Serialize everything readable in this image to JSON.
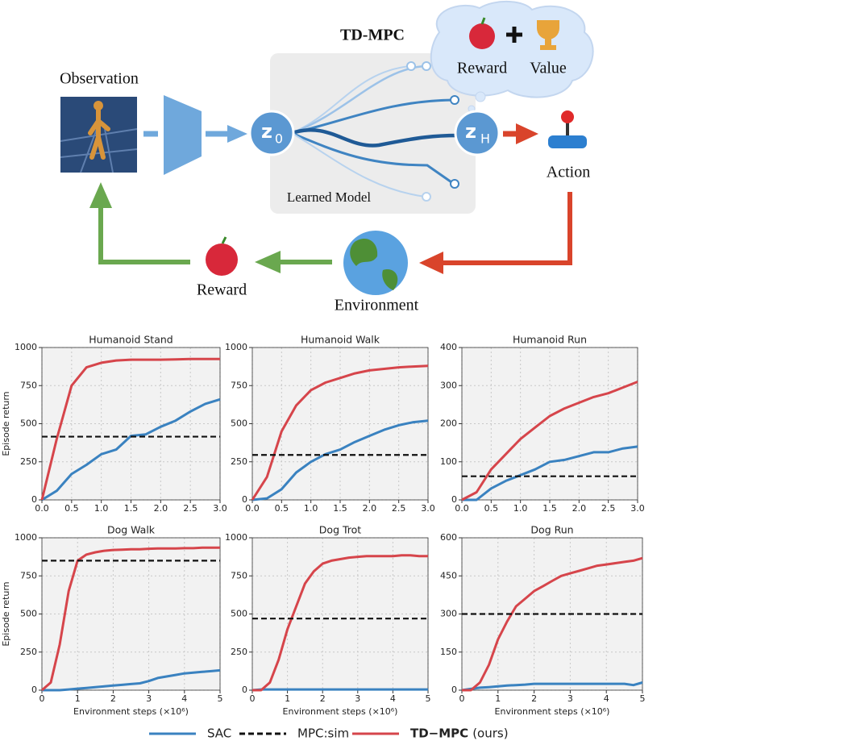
{
  "diagram": {
    "title": "TD-MPC",
    "observation": "Observation",
    "cloud_reward": "Reward",
    "cloud_value": "Value",
    "model": "Learned Model",
    "action": "Action",
    "reward": "Reward",
    "environment": "Environment",
    "start_latent": {
      "base": "z",
      "sub": "0"
    },
    "end_latent": {
      "base": "z",
      "sub": "H"
    }
  },
  "legend": [
    {
      "name": "SAC",
      "color": "#3a82c0",
      "style": "solid"
    },
    {
      "name": "MPC:sim",
      "color": "#111111",
      "style": "dashed"
    },
    {
      "name": "TD−MPC",
      "note": "(ours)",
      "color": "#d6454b",
      "style": "solid"
    }
  ],
  "chart_data": [
    {
      "type": "line",
      "title": "Humanoid Stand",
      "ylabel": "Episode return",
      "grid": true,
      "x": [
        0,
        0.25,
        0.5,
        0.75,
        1,
        1.25,
        1.5,
        1.75,
        2,
        2.25,
        2.5,
        2.75,
        3
      ],
      "series": [
        {
          "values": [
            0,
            60,
            170,
            230,
            300,
            330,
            420,
            430,
            480,
            520,
            580,
            630,
            660
          ]
        },
        {
          "values": [
            0,
            400,
            750,
            870,
            900,
            915,
            920,
            920,
            920,
            922,
            925,
            925,
            925
          ]
        }
      ],
      "reference": 415,
      "xlim": [
        0,
        3
      ],
      "xticks": [
        {
          "value": 0,
          "label": "0.0"
        },
        0.5,
        {
          "value": 1,
          "label": "1.0"
        },
        1.5,
        {
          "value": 2,
          "label": "2.0"
        },
        2.5,
        {
          "value": 3,
          "label": "3.0"
        }
      ],
      "ylim": [
        0,
        1000
      ],
      "yticks": [
        0,
        250,
        500,
        750,
        1000
      ]
    },
    {
      "type": "line",
      "title": "Humanoid Walk",
      "grid": true,
      "x": [
        0,
        0.25,
        0.5,
        0.75,
        1,
        1.25,
        1.5,
        1.75,
        2,
        2.25,
        2.5,
        2.75,
        3
      ],
      "series": [
        {
          "values": [
            0,
            10,
            70,
            180,
            250,
            300,
            330,
            380,
            420,
            460,
            490,
            510,
            520
          ]
        },
        {
          "values": [
            0,
            150,
            450,
            620,
            720,
            770,
            800,
            830,
            850,
            860,
            870,
            875,
            880
          ]
        }
      ],
      "reference": 295,
      "xlim": [
        0,
        3
      ],
      "xticks": [
        {
          "value": 0,
          "label": "0.0"
        },
        0.5,
        {
          "value": 1,
          "label": "1.0"
        },
        1.5,
        {
          "value": 2,
          "label": "2.0"
        },
        2.5,
        {
          "value": 3,
          "label": "3.0"
        }
      ],
      "ylim": [
        0,
        1000
      ],
      "yticks": [
        0,
        250,
        500,
        750,
        1000
      ]
    },
    {
      "type": "line",
      "title": "Humanoid Run",
      "grid": true,
      "x": [
        0,
        0.25,
        0.5,
        0.75,
        1,
        1.25,
        1.5,
        1.75,
        2,
        2.25,
        2.5,
        2.75,
        3
      ],
      "series": [
        {
          "values": [
            0,
            0,
            30,
            50,
            65,
            80,
            100,
            105,
            115,
            125,
            125,
            135,
            140
          ]
        },
        {
          "values": [
            0,
            20,
            80,
            120,
            160,
            190,
            220,
            240,
            255,
            270,
            280,
            295,
            310
          ]
        }
      ],
      "reference": 62,
      "xlim": [
        0,
        3
      ],
      "xticks": [
        {
          "value": 0,
          "label": "0.0"
        },
        0.5,
        {
          "value": 1,
          "label": "1.0"
        },
        1.5,
        {
          "value": 2,
          "label": "2.0"
        },
        2.5,
        {
          "value": 3,
          "label": "3.0"
        }
      ],
      "ylim": [
        0,
        400
      ],
      "yticks": [
        0,
        100,
        200,
        300,
        400
      ]
    },
    {
      "type": "line",
      "title": "Dog Walk",
      "ylabel": "Episode return",
      "xlabel": "Environment steps (×10⁶)",
      "grid": true,
      "x": [
        0,
        0.25,
        0.5,
        0.75,
        1,
        1.25,
        1.5,
        1.75,
        2,
        2.25,
        2.5,
        2.75,
        3,
        3.25,
        3.5,
        3.75,
        4,
        4.25,
        4.5,
        4.75,
        5
      ],
      "series": [
        {
          "values": [
            0,
            0,
            0,
            5,
            10,
            15,
            20,
            25,
            30,
            35,
            40,
            45,
            60,
            80,
            90,
            100,
            110,
            115,
            120,
            125,
            130
          ]
        },
        {
          "values": [
            0,
            50,
            300,
            650,
            850,
            890,
            905,
            915,
            920,
            922,
            925,
            925,
            928,
            930,
            930,
            930,
            932,
            932,
            935,
            935,
            935
          ]
        }
      ],
      "reference": 850,
      "xlim": [
        0,
        5
      ],
      "xticks": [
        0,
        1,
        2,
        3,
        4,
        5
      ],
      "ylim": [
        0,
        1000
      ],
      "yticks": [
        0,
        250,
        500,
        750,
        1000
      ]
    },
    {
      "type": "line",
      "title": "Dog Trot",
      "xlabel": "Environment steps (×10⁶)",
      "grid": true,
      "x": [
        0,
        0.25,
        0.5,
        0.75,
        1,
        1.25,
        1.5,
        1.75,
        2,
        2.25,
        2.5,
        2.75,
        3,
        3.25,
        3.5,
        3.75,
        4,
        4.25,
        4.5,
        4.75,
        5
      ],
      "series": [
        {
          "values": [
            0,
            5,
            5,
            5,
            5,
            5,
            5,
            5,
            5,
            5,
            5,
            5,
            5,
            5,
            5,
            5,
            5,
            5,
            5,
            5,
            5
          ]
        },
        {
          "values": [
            0,
            0,
            50,
            200,
            400,
            550,
            700,
            780,
            830,
            850,
            860,
            870,
            875,
            880,
            880,
            880,
            880,
            885,
            885,
            880,
            880
          ]
        }
      ],
      "reference": 470,
      "xlim": [
        0,
        5
      ],
      "xticks": [
        0,
        1,
        2,
        3,
        4,
        5
      ],
      "ylim": [
        0,
        1000
      ],
      "yticks": [
        0,
        250,
        500,
        750,
        1000
      ]
    },
    {
      "type": "line",
      "title": "Dog Run",
      "xlabel": "Environment steps (×10⁶)",
      "grid": true,
      "x": [
        0,
        0.25,
        0.5,
        0.75,
        1,
        1.25,
        1.5,
        1.75,
        2,
        2.25,
        2.5,
        2.75,
        3,
        3.25,
        3.5,
        3.75,
        4,
        4.25,
        4.5,
        4.75,
        5
      ],
      "series": [
        {
          "values": [
            0,
            5,
            10,
            12,
            15,
            18,
            20,
            22,
            25,
            25,
            25,
            25,
            25,
            25,
            25,
            25,
            25,
            25,
            25,
            20,
            30
          ]
        },
        {
          "values": [
            0,
            0,
            30,
            100,
            200,
            270,
            330,
            360,
            390,
            410,
            430,
            450,
            460,
            470,
            480,
            490,
            495,
            500,
            505,
            510,
            520
          ]
        }
      ],
      "reference": 300,
      "xlim": [
        0,
        5
      ],
      "xticks": [
        0,
        1,
        2,
        3,
        4,
        5
      ],
      "ylim": [
        0,
        600
      ],
      "yticks": [
        0,
        150,
        300,
        450,
        600
      ]
    }
  ]
}
